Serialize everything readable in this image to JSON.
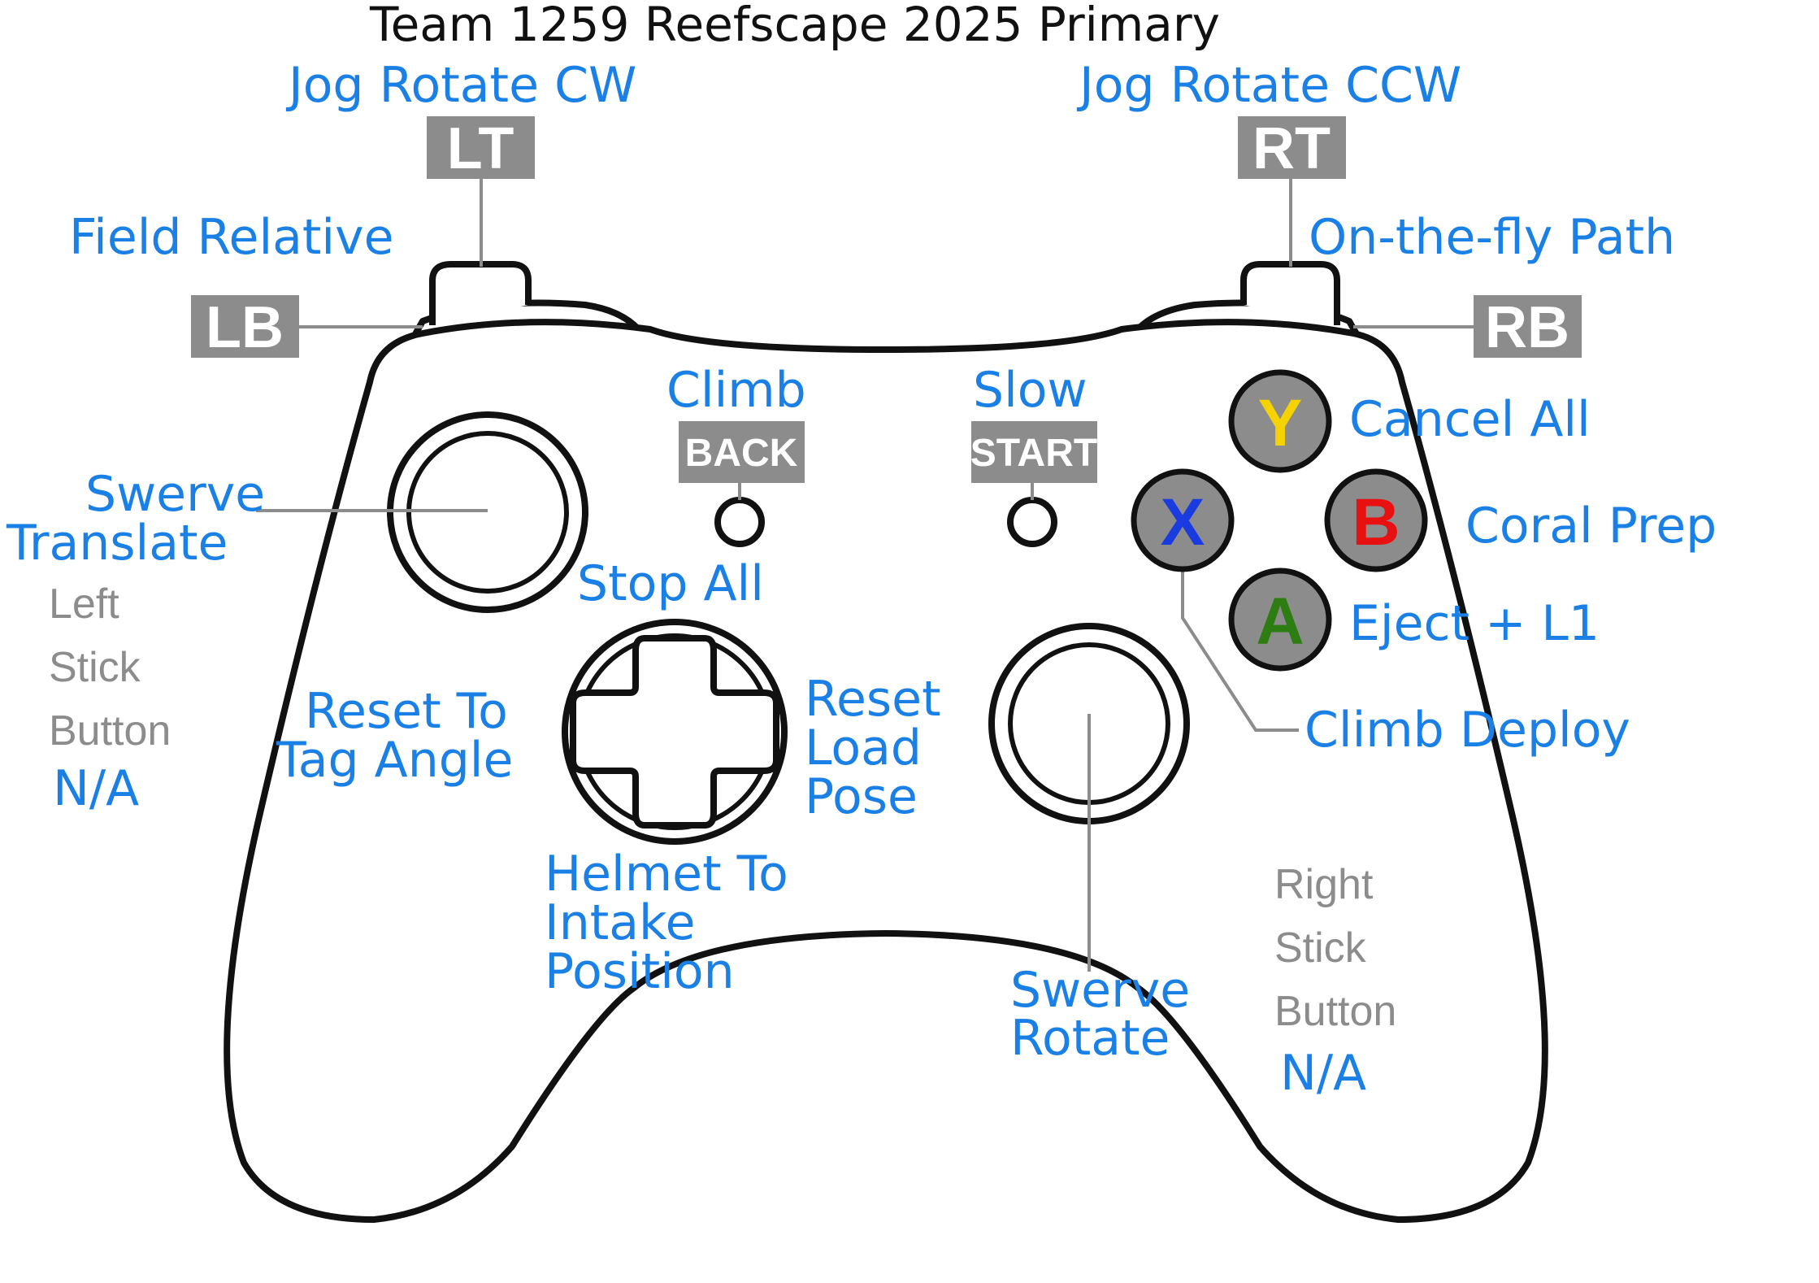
{
  "title": "Team 1259 Reefscape 2025 Primary",
  "colors": {
    "label_blue": "#1a80e6",
    "badge_gray": "#8c8c8c",
    "y_button": "#f5d300",
    "b_button": "#e81010",
    "x_button": "#1a3be0",
    "a_button": "#2e7d12"
  },
  "triggers": {
    "lt": {
      "badge": "LT",
      "action": "Jog Rotate CW"
    },
    "rt": {
      "badge": "RT",
      "action": "Jog Rotate CCW"
    }
  },
  "bumpers": {
    "lb": {
      "badge": "LB",
      "action": "Field Relative"
    },
    "rb": {
      "badge": "RB",
      "action": "On-the-fly Path"
    }
  },
  "center_buttons": {
    "back": {
      "badge": "BACK",
      "action": "Climb"
    },
    "start": {
      "badge": "START",
      "action": "Slow"
    }
  },
  "face_buttons": {
    "y": {
      "letter": "Y",
      "action": "Cancel All"
    },
    "b": {
      "letter": "B",
      "action": "Coral Prep"
    },
    "a": {
      "letter": "A",
      "action": "Eject + L1"
    },
    "x": {
      "letter": "X",
      "action": "Climb Deploy"
    }
  },
  "left_stick": {
    "action_line1": "Swerve",
    "action_line2": "Translate",
    "button_caption": [
      "Left",
      "Stick",
      "Button"
    ],
    "button_action": "N/A"
  },
  "right_stick": {
    "action_line1": "Swerve",
    "action_line2": "Rotate",
    "button_caption": [
      "Right",
      "Stick",
      "Button"
    ],
    "button_action": "N/A"
  },
  "dpad": {
    "up": "Stop All",
    "left": [
      "Reset To",
      "Tag Angle"
    ],
    "right": [
      "Reset",
      "Load",
      "Pose"
    ],
    "down": [
      "Helmet To",
      "Intake",
      "Position"
    ]
  }
}
